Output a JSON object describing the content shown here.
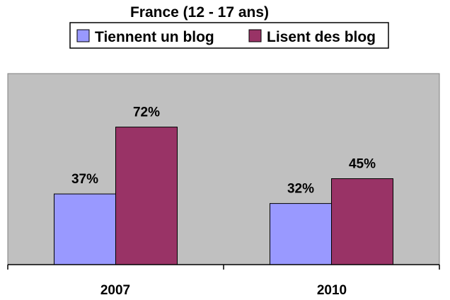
{
  "chart_data": {
    "type": "bar",
    "title": "France (12 - 17 ans)",
    "categories": [
      "2007",
      "2010"
    ],
    "series": [
      {
        "name": "Tiennent un blog",
        "values": [
          37,
          32
        ],
        "labels": [
          "37%",
          "32%"
        ],
        "color": "#9999ff"
      },
      {
        "name": "Lisent des blog",
        "values": [
          72,
          45
        ],
        "labels": [
          "72%",
          "45%"
        ],
        "color": "#993366"
      }
    ],
    "ylim": [
      0,
      100
    ],
    "plot_background": "#c0c0c0",
    "legend_position": "top",
    "grid": false
  }
}
